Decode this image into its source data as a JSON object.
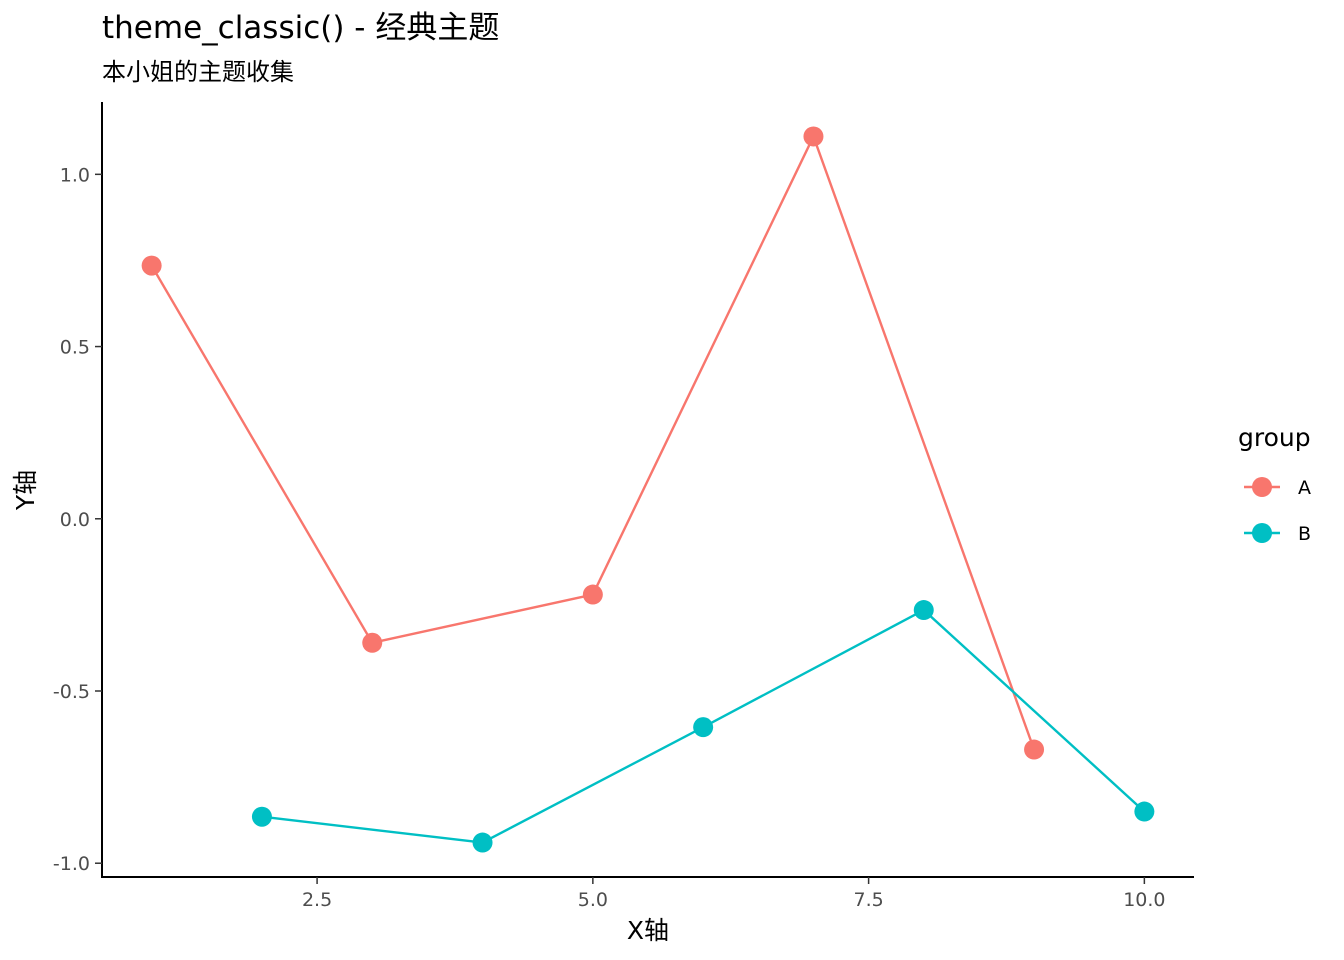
{
  "chart_data": {
    "type": "line",
    "title": "theme_classic() - 经典主题",
    "subtitle": "本小姐的主题收集",
    "xlabel": "X轴",
    "ylabel": "Y轴",
    "xlim": [
      0.55,
      10.45
    ],
    "ylim": [
      -1.04,
      1.21
    ],
    "x_ticks": [
      2.5,
      5.0,
      7.5,
      10.0
    ],
    "x_tick_labels": [
      "2.5",
      "5.0",
      "7.5",
      "10.0"
    ],
    "y_ticks": [
      -1.0,
      -0.5,
      0.0,
      0.5,
      1.0
    ],
    "y_tick_labels": [
      "-1.0",
      "-0.5",
      "0.0",
      "0.5",
      "1.0"
    ],
    "grid": false,
    "legend": {
      "title": "group",
      "position": "right"
    },
    "series": [
      {
        "name": "A",
        "color": "#F8766D",
        "x": [
          1,
          3,
          5,
          7,
          9
        ],
        "y": [
          0.735,
          -0.36,
          -0.22,
          1.11,
          -0.67
        ]
      },
      {
        "name": "B",
        "color": "#00BFC4",
        "x": [
          2,
          4,
          6,
          8,
          10
        ],
        "y": [
          -0.865,
          -0.94,
          -0.605,
          -0.265,
          -0.85
        ]
      }
    ]
  }
}
